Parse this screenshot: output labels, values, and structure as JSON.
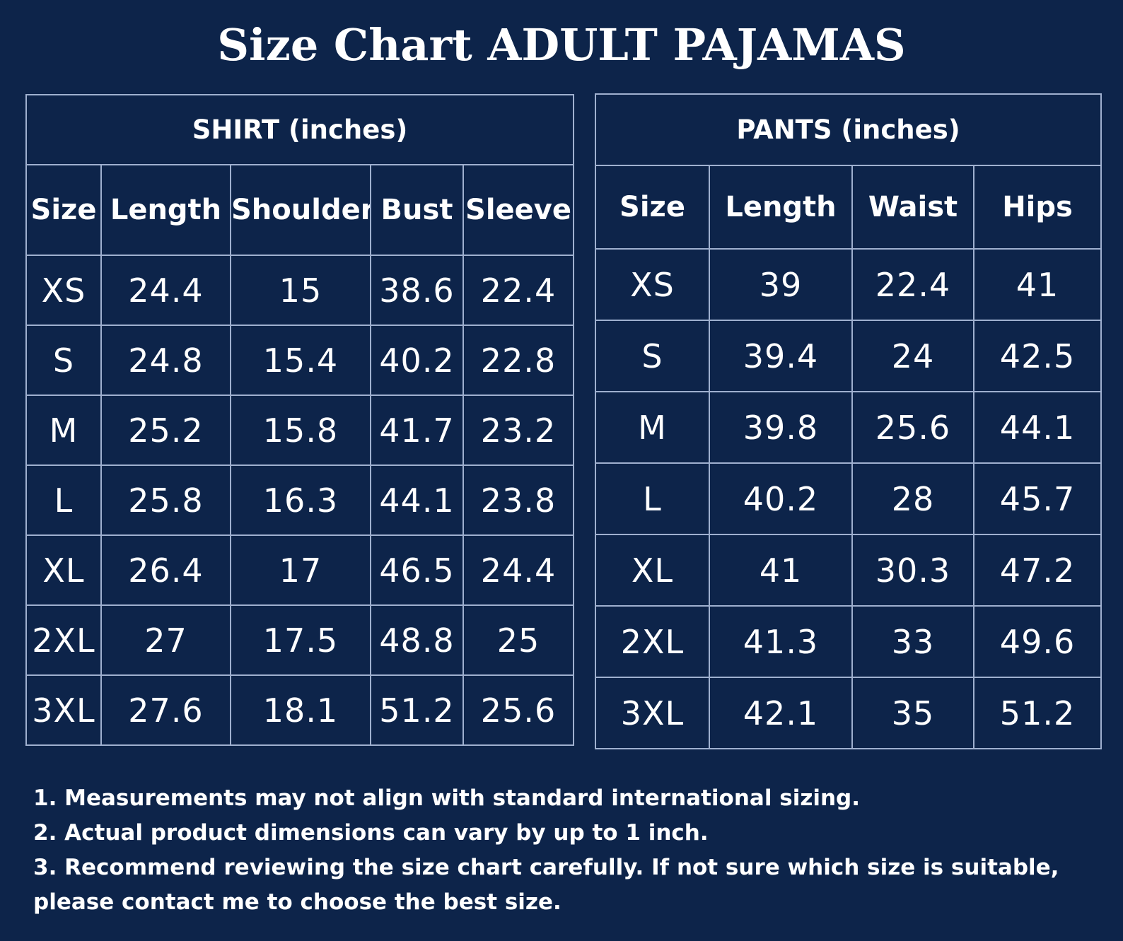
{
  "title": "Size Chart ADULT PAJAMAS",
  "shirt": {
    "heading": "SHIRT (inches)",
    "columns": [
      "Size",
      "Length",
      "Shoulder",
      "Bust",
      "Sleeve"
    ],
    "rows": [
      [
        "XS",
        "24.4",
        "15",
        "38.6",
        "22.4"
      ],
      [
        "S",
        "24.8",
        "15.4",
        "40.2",
        "22.8"
      ],
      [
        "M",
        "25.2",
        "15.8",
        "41.7",
        "23.2"
      ],
      [
        "L",
        "25.8",
        "16.3",
        "44.1",
        "23.8"
      ],
      [
        "XL",
        "26.4",
        "17",
        "46.5",
        "24.4"
      ],
      [
        "2XL",
        "27",
        "17.5",
        "48.8",
        "25"
      ],
      [
        "3XL",
        "27.6",
        "18.1",
        "51.2",
        "25.6"
      ]
    ]
  },
  "pants": {
    "heading": "PANTS (inches)",
    "columns": [
      "Size",
      "Length",
      "Waist",
      "Hips"
    ],
    "rows": [
      [
        "XS",
        "39",
        "22.4",
        "41"
      ],
      [
        "S",
        "39.4",
        "24",
        "42.5"
      ],
      [
        "M",
        "39.8",
        "25.6",
        "44.1"
      ],
      [
        "L",
        "40.2",
        "28",
        "45.7"
      ],
      [
        "XL",
        "41",
        "30.3",
        "47.2"
      ],
      [
        "2XL",
        "41.3",
        "33",
        "49.6"
      ],
      [
        "3XL",
        "42.1",
        "35",
        "51.2"
      ]
    ]
  },
  "notes": [
    "1. Measurements may not align with standard international sizing.",
    "2. Actual product dimensions can vary by up to 1 inch.",
    "3. Recommend reviewing the size chart carefully. If not sure which size is suitable, please contact me to choose the best size."
  ],
  "colors": {
    "background": "#0d244a",
    "text": "#ffffff",
    "grid": "#9fb0cf"
  }
}
